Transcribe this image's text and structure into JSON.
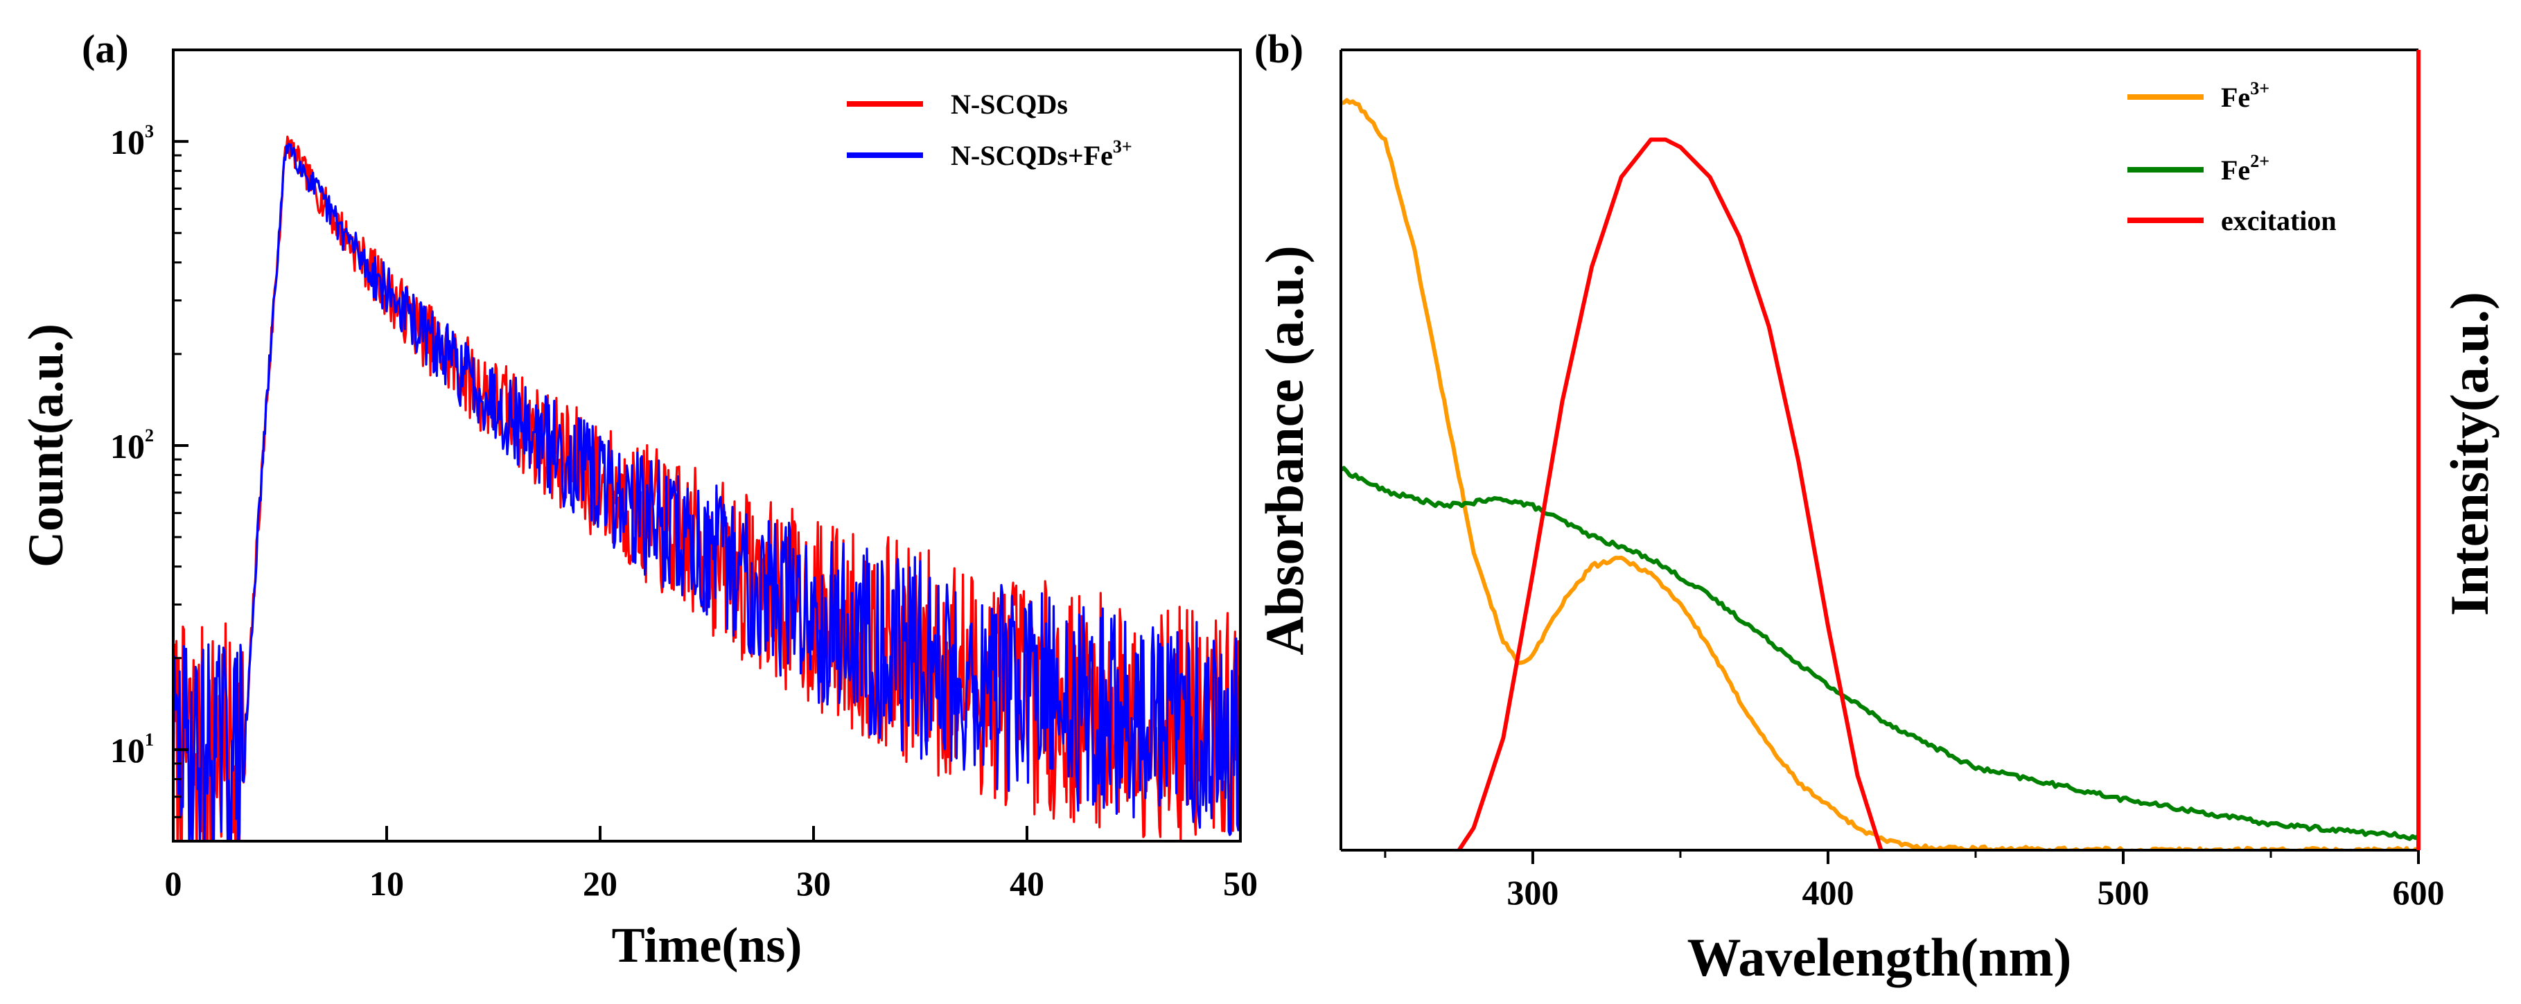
{
  "chart_data": [
    {
      "panel": "(a)",
      "type": "line",
      "xlabel": "Time(ns)",
      "ylabel": "Count(a.u.)",
      "xlim": [
        0,
        50
      ],
      "ylim": [
        5,
        2000
      ],
      "yscale": "log",
      "xticks": [
        "0",
        "10",
        "20",
        "30",
        "40",
        "50"
      ],
      "yticks": [
        {
          "base": "10",
          "exp": "1",
          "value": 10
        },
        {
          "base": "10",
          "exp": "2",
          "value": 100
        },
        {
          "base": "10",
          "exp": "3",
          "value": 1000
        }
      ],
      "legend_position": "top-right",
      "series": [
        {
          "name": "N-SCQDs",
          "label": "N-SCQDs",
          "label_sup": "",
          "color": "#ff0000",
          "noise": 0.19,
          "seed": 7
        },
        {
          "name": "N-SCQDs+Fe3+",
          "label": "N-SCQDs+Fe",
          "label_sup": "3+",
          "color": "#0000ff",
          "noise": 0.17,
          "seed": 29
        }
      ],
      "decay_model": {
        "baseline_counts": 10,
        "rise_start_ns": 3.4,
        "peak_ns": 5.3,
        "peak_counts": 1000,
        "fast_amplitude": 600,
        "fast_tau_ns": 2.5,
        "slow_amplitude": 400,
        "slow_tau_ns": 8.0
      }
    },
    {
      "panel": "(b)",
      "type": "line",
      "xlabel": "Wavelength(nm)",
      "ylabel_left": "Absorbance (a.u.)",
      "ylabel_right": "Intensity(a.u.)",
      "xlim": [
        235,
        600
      ],
      "ylim": [
        0,
        1.07
      ],
      "xticks": [
        "300",
        "400",
        "500",
        "600"
      ],
      "legend_position": "top-right",
      "series": [
        {
          "name": "Fe3+",
          "label": "Fe",
          "label_sup": "3+",
          "color": "#ff9900",
          "x": [
            235,
            240,
            250,
            260,
            270,
            280,
            290,
            295,
            300,
            310,
            320,
            330,
            340,
            350,
            360,
            370,
            380,
            390,
            400,
            410,
            420,
            430,
            450,
            500,
            600
          ],
          "y": [
            1.0,
            1.0,
            0.95,
            0.8,
            0.6,
            0.4,
            0.28,
            0.25,
            0.26,
            0.33,
            0.38,
            0.39,
            0.37,
            0.33,
            0.27,
            0.2,
            0.14,
            0.09,
            0.06,
            0.03,
            0.012,
            0.004,
            0.002,
            0.0,
            0.0
          ]
        },
        {
          "name": "Fe2+",
          "label": "Fe",
          "label_sup": "2+",
          "color": "#008000",
          "x": [
            235,
            250,
            270,
            290,
            300,
            320,
            340,
            360,
            380,
            400,
            420,
            450,
            480,
            500,
            550,
            600
          ],
          "y": [
            0.51,
            0.48,
            0.46,
            0.47,
            0.46,
            0.42,
            0.39,
            0.34,
            0.28,
            0.22,
            0.17,
            0.11,
            0.085,
            0.068,
            0.035,
            0.017
          ]
        },
        {
          "name": "excitation",
          "label": "excitation",
          "label_sup": "",
          "color": "#ff0000",
          "x": [
            275,
            280,
            290,
            300,
            310,
            320,
            330,
            340,
            345,
            350,
            360,
            370,
            380,
            390,
            400,
            410,
            418
          ],
          "y": [
            0.0,
            0.03,
            0.15,
            0.37,
            0.6,
            0.78,
            0.9,
            0.95,
            0.95,
            0.94,
            0.9,
            0.82,
            0.7,
            0.52,
            0.3,
            0.1,
            0.0
          ]
        }
      ]
    }
  ]
}
